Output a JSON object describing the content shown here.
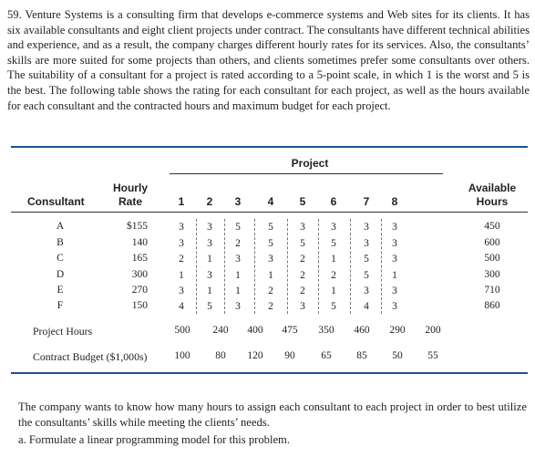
{
  "problem": {
    "number": "59.",
    "intro": "Venture Systems is a consulting firm that develops e-commerce systems and Web sites for its clients. It has six available consultants and eight client projects under contract. The consultants have different technical abilities and experience, and as a result, the company charges different hourly rates for its services. Also, the consultants’ skills are more suited for some projects than others, and clients sometimes prefer some consultants over others. The suitability of a consultant for a project is rated according to a 5-point scale, in which 1 is the worst and 5 is the best. The following table shows the rating for each consultant for each project, as well as the hours available for each consultant and the contracted hours and maximum budget for each project.",
    "closing": "The company wants to know how many hours to assign each consultant to each project in order to best utilize the consultants’ skills while meeting the clients’ needs.",
    "part_a": "a.  Formulate a linear programming model for this problem."
  },
  "table": {
    "project_title": "Project",
    "consultant_header": "Consultant",
    "rate_header_line1": "Hourly",
    "rate_header_line2": "Rate",
    "available_header_line1": "Available",
    "available_header_line2": "Hours",
    "projects": [
      "1",
      "2",
      "3",
      "4",
      "5",
      "6",
      "7",
      "8"
    ],
    "rows": [
      {
        "consultant": "A",
        "rate": "$155",
        "ratings": [
          "3",
          "3",
          "5",
          "5",
          "3",
          "3",
          "3",
          "3"
        ],
        "available": "450"
      },
      {
        "consultant": "B",
        "rate": "140",
        "ratings": [
          "3",
          "3",
          "2",
          "5",
          "5",
          "5",
          "3",
          "3"
        ],
        "available": "600"
      },
      {
        "consultant": "C",
        "rate": "165",
        "ratings": [
          "2",
          "1",
          "3",
          "3",
          "2",
          "1",
          "5",
          "3"
        ],
        "available": "500"
      },
      {
        "consultant": "D",
        "rate": "300",
        "ratings": [
          "1",
          "3",
          "1",
          "1",
          "2",
          "2",
          "5",
          "1"
        ],
        "available": "300"
      },
      {
        "consultant": "E",
        "rate": "270",
        "ratings": [
          "3",
          "1",
          "1",
          "2",
          "2",
          "1",
          "3",
          "3"
        ],
        "available": "710"
      },
      {
        "consultant": "F",
        "rate": "150",
        "ratings": [
          "4",
          "5",
          "3",
          "2",
          "3",
          "5",
          "4",
          "3"
        ],
        "available": "860"
      }
    ],
    "project_hours_label": "Project Hours",
    "project_hours": [
      "500",
      "240",
      "400",
      "475",
      "350",
      "460",
      "290",
      "200"
    ],
    "budget_label": "Contract Budget ($1,000s)",
    "budget": [
      "100",
      "80",
      "120",
      "90",
      "65",
      "85",
      "50",
      "55"
    ]
  }
}
